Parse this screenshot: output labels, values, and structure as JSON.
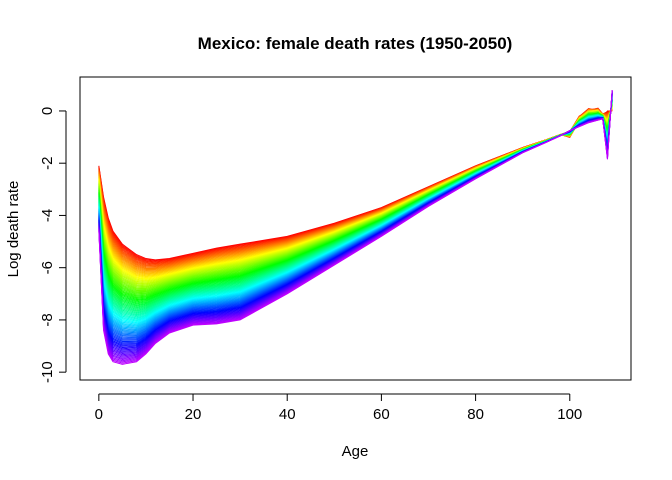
{
  "chart_data": {
    "type": "line",
    "title": "Mexico: female death rates  (1950-2050)",
    "xlabel": "Age",
    "ylabel": "Log death rate",
    "xlim": [
      -4,
      113
    ],
    "ylim": [
      -10.3,
      1.3
    ],
    "x_ticks": [
      0,
      20,
      40,
      60,
      80,
      100
    ],
    "y_ticks": [
      -10,
      -8,
      -6,
      -4,
      -2,
      0
    ],
    "x_tick_labels": [
      "0",
      "20",
      "40",
      "60",
      "80",
      "100"
    ],
    "y_tick_labels": [
      "-10",
      "-8",
      "-6",
      "-4",
      "-2",
      "0"
    ],
    "series_count": 101,
    "series_years": [
      1950,
      2050
    ],
    "color_scheme": "rainbow (red = earliest year, violet = latest year)",
    "age": [
      0,
      1,
      2,
      3,
      5,
      8,
      10,
      12,
      15,
      20,
      25,
      30,
      40,
      50,
      60,
      70,
      80,
      90,
      95,
      98,
      100,
      102,
      104,
      106,
      107,
      108,
      109
    ],
    "first_series": {
      "name": "1950",
      "values": [
        -2.1,
        -3.3,
        -4.1,
        -4.6,
        -5.1,
        -5.5,
        -5.65,
        -5.7,
        -5.65,
        -5.45,
        -5.25,
        -5.1,
        -4.8,
        -4.3,
        -3.7,
        -2.9,
        -2.1,
        -1.4,
        -1.1,
        -0.9,
        -0.9,
        -0.3,
        0.0,
        0.0,
        -0.2,
        0.0,
        0.0
      ]
    },
    "last_series": {
      "name": "2050",
      "values": [
        -4.6,
        -8.4,
        -9.3,
        -9.6,
        -9.7,
        -9.6,
        -9.3,
        -8.9,
        -8.5,
        -8.2,
        -8.15,
        -8.0,
        -7.0,
        -5.9,
        -4.8,
        -3.65,
        -2.6,
        -1.6,
        -1.2,
        -0.95,
        -0.75,
        -0.6,
        -0.45,
        -0.35,
        -0.3,
        -1.85,
        0.8
      ]
    }
  }
}
